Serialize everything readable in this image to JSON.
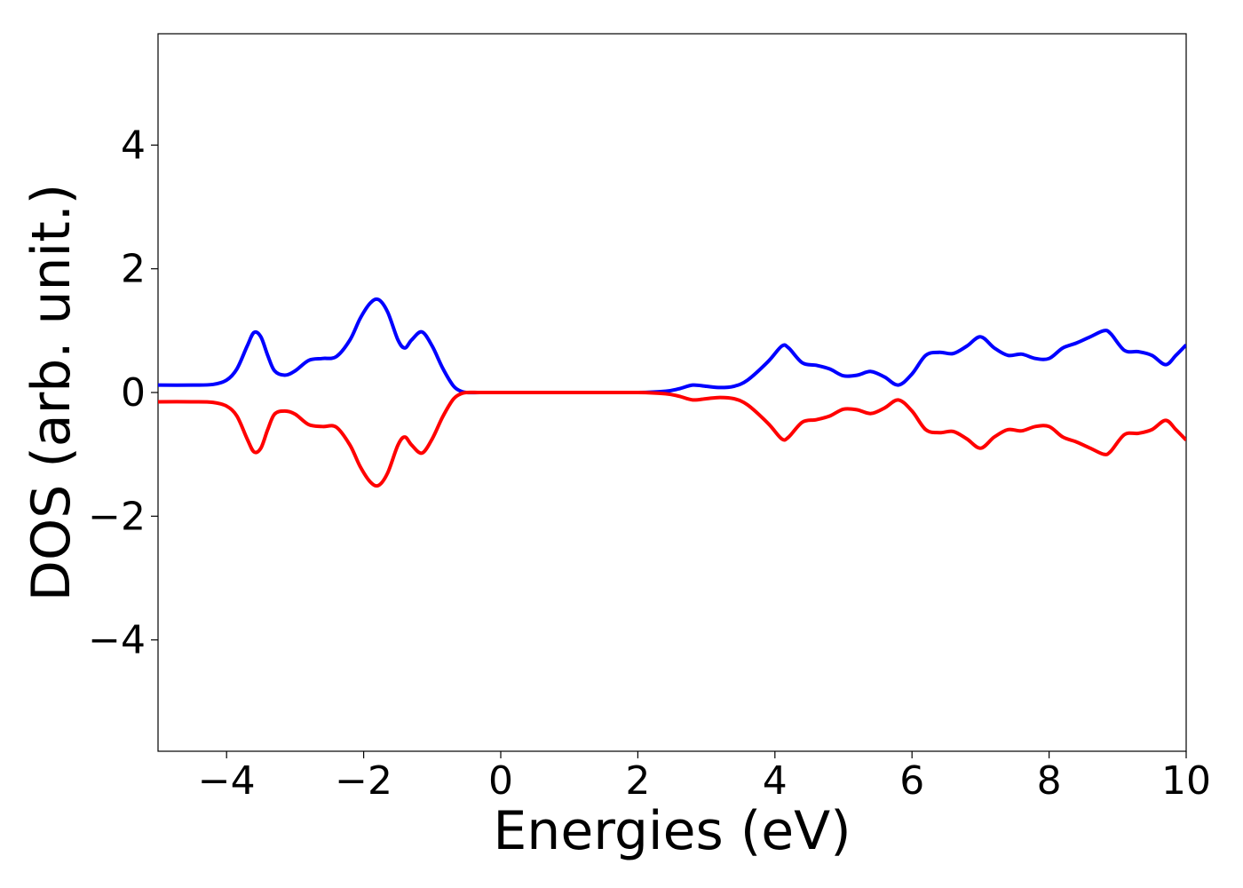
{
  "chart_data": {
    "type": "line",
    "title": "",
    "xlabel": "Energies (eV)",
    "ylabel": "DOS (arb. unit.)",
    "xlim": [
      -5,
      10
    ],
    "ylim": [
      -5.8,
      5.8
    ],
    "x_ticks": [
      -4,
      -2,
      0,
      2,
      4,
      6,
      8,
      10
    ],
    "x_tick_labels": [
      "−4",
      "−2",
      "0",
      "2",
      "4",
      "6",
      "8",
      "10"
    ],
    "y_ticks": [
      -4,
      -2,
      0,
      2,
      4
    ],
    "y_tick_labels": [
      "−4",
      "−2",
      "0",
      "2",
      "4"
    ],
    "grid": false,
    "legend": "none",
    "series": [
      {
        "color": "#0000ff",
        "x": [
          -5.0,
          -4.5,
          -4.2,
          -4.0,
          -3.85,
          -3.7,
          -3.6,
          -3.5,
          -3.4,
          -3.3,
          -3.15,
          -3.0,
          -2.8,
          -2.6,
          -2.4,
          -2.2,
          -2.05,
          -1.9,
          -1.78,
          -1.65,
          -1.5,
          -1.4,
          -1.3,
          -1.15,
          -1.0,
          -0.85,
          -0.7,
          -0.6,
          -0.5,
          -0.3,
          0.0,
          1.0,
          2.0,
          2.4,
          2.6,
          2.8,
          3.0,
          3.2,
          3.4,
          3.6,
          3.9,
          4.1,
          4.2,
          4.4,
          4.6,
          4.8,
          5.0,
          5.2,
          5.4,
          5.6,
          5.8,
          6.0,
          6.2,
          6.4,
          6.6,
          6.8,
          7.0,
          7.2,
          7.4,
          7.6,
          7.8,
          8.0,
          8.2,
          8.4,
          8.6,
          8.8,
          8.9,
          9.1,
          9.3,
          9.5,
          9.7,
          9.85,
          10.0
        ],
        "y": [
          0.12,
          0.12,
          0.13,
          0.2,
          0.38,
          0.75,
          0.97,
          0.9,
          0.6,
          0.35,
          0.28,
          0.35,
          0.52,
          0.55,
          0.58,
          0.85,
          1.2,
          1.45,
          1.5,
          1.3,
          0.85,
          0.72,
          0.85,
          0.98,
          0.75,
          0.4,
          0.12,
          0.03,
          0.0,
          0.0,
          0.0,
          0.0,
          0.0,
          0.02,
          0.06,
          0.12,
          0.1,
          0.08,
          0.1,
          0.2,
          0.5,
          0.75,
          0.72,
          0.48,
          0.44,
          0.38,
          0.27,
          0.28,
          0.34,
          0.25,
          0.12,
          0.3,
          0.6,
          0.65,
          0.63,
          0.75,
          0.9,
          0.72,
          0.6,
          0.62,
          0.55,
          0.55,
          0.72,
          0.8,
          0.9,
          1.0,
          0.95,
          0.68,
          0.66,
          0.6,
          0.45,
          0.6,
          0.77
        ]
      },
      {
        "color": "#ff0000",
        "x": [
          -5.0,
          -4.5,
          -4.2,
          -4.0,
          -3.85,
          -3.7,
          -3.6,
          -3.5,
          -3.4,
          -3.3,
          -3.15,
          -3.0,
          -2.8,
          -2.6,
          -2.4,
          -2.2,
          -2.05,
          -1.9,
          -1.78,
          -1.65,
          -1.5,
          -1.4,
          -1.3,
          -1.15,
          -1.0,
          -0.85,
          -0.7,
          -0.6,
          -0.5,
          -0.3,
          0.0,
          1.0,
          2.0,
          2.4,
          2.6,
          2.8,
          3.0,
          3.2,
          3.4,
          3.6,
          3.9,
          4.1,
          4.2,
          4.4,
          4.6,
          4.8,
          5.0,
          5.2,
          5.4,
          5.6,
          5.8,
          6.0,
          6.2,
          6.4,
          6.6,
          6.8,
          7.0,
          7.2,
          7.4,
          7.6,
          7.8,
          8.0,
          8.2,
          8.4,
          8.6,
          8.8,
          8.9,
          9.1,
          9.3,
          9.5,
          9.7,
          9.85,
          10.0
        ],
        "y": [
          -0.15,
          -0.15,
          -0.16,
          -0.22,
          -0.38,
          -0.75,
          -0.96,
          -0.9,
          -0.6,
          -0.35,
          -0.3,
          -0.35,
          -0.52,
          -0.55,
          -0.56,
          -0.85,
          -1.2,
          -1.45,
          -1.5,
          -1.3,
          -0.85,
          -0.72,
          -0.85,
          -0.98,
          -0.75,
          -0.4,
          -0.12,
          -0.03,
          0.0,
          0.0,
          0.0,
          0.0,
          0.0,
          -0.02,
          -0.06,
          -0.12,
          -0.1,
          -0.08,
          -0.1,
          -0.2,
          -0.5,
          -0.75,
          -0.72,
          -0.48,
          -0.44,
          -0.38,
          -0.27,
          -0.28,
          -0.34,
          -0.25,
          -0.12,
          -0.3,
          -0.6,
          -0.65,
          -0.63,
          -0.75,
          -0.9,
          -0.72,
          -0.6,
          -0.62,
          -0.55,
          -0.55,
          -0.72,
          -0.8,
          -0.9,
          -1.0,
          -0.95,
          -0.68,
          -0.66,
          -0.6,
          -0.45,
          -0.6,
          -0.77
        ]
      }
    ]
  }
}
